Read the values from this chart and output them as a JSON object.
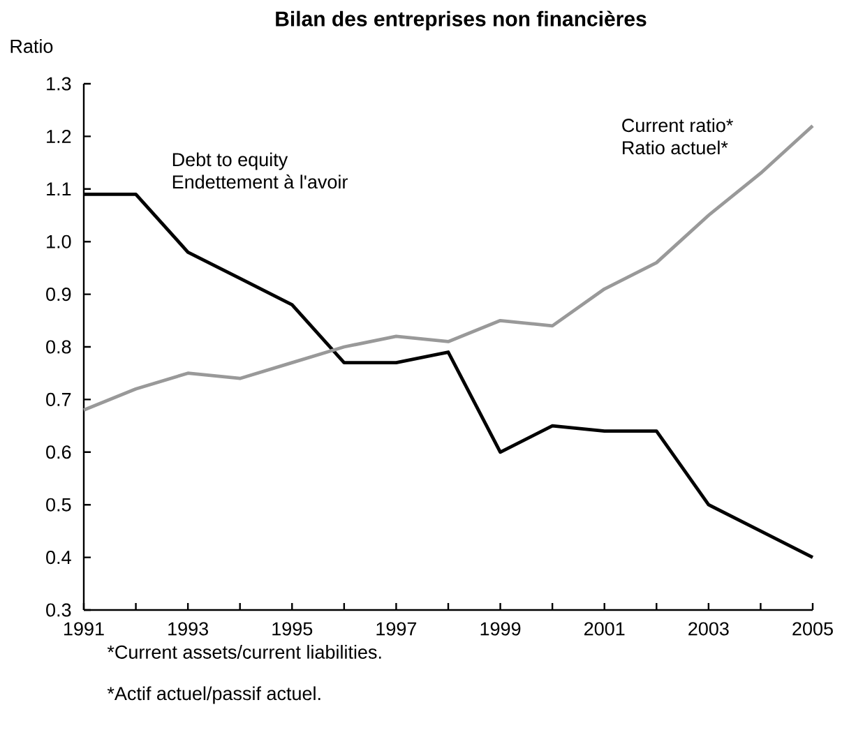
{
  "chart_data": {
    "type": "line",
    "title": "Bilan des entreprises non financières",
    "ylabel": "Ratio",
    "x": [
      1991,
      1992,
      1993,
      1994,
      1995,
      1996,
      1997,
      1998,
      1999,
      2000,
      2001,
      2002,
      2003,
      2004,
      2005
    ],
    "series": [
      {
        "name": "Debt to equity",
        "color": "#000000",
        "values": [
          1.09,
          1.09,
          0.98,
          0.93,
          0.88,
          0.77,
          0.77,
          0.79,
          0.6,
          0.65,
          0.64,
          0.64,
          0.5,
          0.45,
          0.4
        ]
      },
      {
        "name": "Current ratio*",
        "color": "#999999",
        "values": [
          0.68,
          0.72,
          0.75,
          0.74,
          0.77,
          0.8,
          0.82,
          0.81,
          0.85,
          0.84,
          0.91,
          0.96,
          1.05,
          1.13,
          1.22
        ]
      }
    ],
    "annotations": [
      "Endettement à l'avoir",
      "Ratio actuel*",
      "*Current assets/current liabilities.",
      "*Actif actuel/passif actuel."
    ],
    "xlim": [
      1991,
      2005
    ],
    "xticks": [
      1991,
      {
        "value": 1992,
        "label": null
      },
      1993,
      {
        "value": 1994,
        "label": null
      },
      1995,
      {
        "value": 1996,
        "label": null
      },
      1997,
      {
        "value": 1998,
        "label": null
      },
      1999,
      {
        "value": 2000,
        "label": null
      },
      2001,
      {
        "value": 2002,
        "label": null
      },
      2003,
      {
        "value": 2004,
        "label": null
      },
      2005
    ],
    "ylim": [
      0.3,
      1.3
    ],
    "yticks": [
      0.3,
      0.4,
      0.5,
      0.6,
      0.7,
      0.8,
      0.9,
      {
        "value": 1.0,
        "label": "1.0"
      },
      1.1,
      1.2,
      1.3
    ],
    "grid": false,
    "legend": false,
    "marker": "none",
    "line_style": "solid"
  }
}
